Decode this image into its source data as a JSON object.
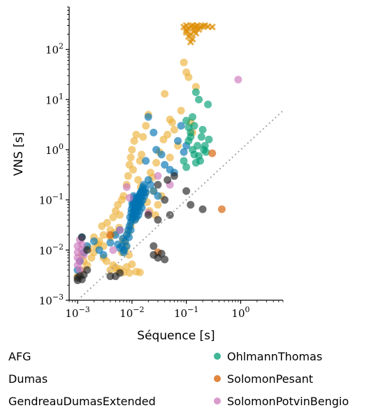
{
  "chart_data": {
    "type": "scatter",
    "xlabel": "Séquence [s]",
    "ylabel": "VNS [s]",
    "xscale": "log",
    "yscale": "log",
    "xlim": [
      0.0007,
      6
    ],
    "ylim": [
      0.001,
      700
    ],
    "x_ticks": [
      {
        "base": "10",
        "exp": "−3"
      },
      {
        "base": "10",
        "exp": "−2"
      },
      {
        "base": "10",
        "exp": "−1"
      },
      {
        "base": "10",
        "exp": "0"
      }
    ],
    "y_ticks": [
      {
        "base": "10",
        "exp": "−3"
      },
      {
        "base": "10",
        "exp": "−2"
      },
      {
        "base": "10",
        "exp": "−1"
      },
      {
        "base": "10",
        "exp": "0"
      },
      {
        "base": "10",
        "exp": "1"
      },
      {
        "base": "10",
        "exp": "2"
      }
    ],
    "diagonal_reference": true,
    "grid": false,
    "legend_placement": "below",
    "series": [
      {
        "name": "AFG",
        "marker": "x",
        "color": "#DE8F05",
        "points": [
          [
            0.09,
            280
          ],
          [
            0.1,
            300
          ],
          [
            0.11,
            260
          ],
          [
            0.12,
            290
          ],
          [
            0.13,
            300
          ],
          [
            0.14,
            270
          ],
          [
            0.15,
            285
          ],
          [
            0.16,
            300
          ],
          [
            0.18,
            280
          ],
          [
            0.2,
            290
          ],
          [
            0.22,
            300
          ],
          [
            0.25,
            285
          ],
          [
            0.3,
            280
          ],
          [
            0.1,
            220
          ],
          [
            0.12,
            200
          ],
          [
            0.14,
            230
          ],
          [
            0.11,
            180
          ],
          [
            0.13,
            160
          ],
          [
            0.12,
            140
          ],
          [
            0.1,
            240
          ],
          [
            0.15,
            210
          ],
          [
            0.17,
            250
          ]
        ]
      },
      {
        "name": "Dumas",
        "color": "#ECB23C",
        "points": [
          [
            0.001,
            0.003
          ],
          [
            0.0012,
            0.004
          ],
          [
            0.0015,
            0.005
          ],
          [
            0.0013,
            0.006
          ],
          [
            0.0018,
            0.007
          ],
          [
            0.002,
            0.009
          ],
          [
            0.0022,
            0.012
          ],
          [
            0.0025,
            0.015
          ],
          [
            0.003,
            0.02
          ],
          [
            0.0028,
            0.03
          ],
          [
            0.0035,
            0.035
          ],
          [
            0.004,
            0.025
          ],
          [
            0.0045,
            0.045
          ],
          [
            0.005,
            0.06
          ],
          [
            0.0055,
            0.08
          ],
          [
            0.006,
            0.05
          ],
          [
            0.0065,
            0.1
          ],
          [
            0.007,
            0.12
          ],
          [
            0.008,
            0.2
          ],
          [
            0.0085,
            0.3
          ],
          [
            0.009,
            0.5
          ],
          [
            0.0095,
            0.7
          ],
          [
            0.01,
            1.0
          ],
          [
            0.011,
            1.5
          ],
          [
            0.012,
            2.0
          ],
          [
            0.0105,
            0.4
          ],
          [
            0.013,
            0.25
          ],
          [
            0.014,
            0.6
          ],
          [
            0.015,
            0.8
          ],
          [
            0.016,
            1.8
          ],
          [
            0.018,
            3.0
          ],
          [
            0.02,
            5.0
          ],
          [
            0.022,
            0.35
          ],
          [
            0.025,
            0.15
          ],
          [
            0.03,
            0.08
          ],
          [
            0.035,
            0.12
          ],
          [
            0.04,
            13
          ],
          [
            0.05,
            4
          ],
          [
            0.06,
            2.5
          ],
          [
            0.07,
            1.2
          ],
          [
            0.08,
            6
          ],
          [
            0.09,
            55
          ],
          [
            0.1,
            35
          ],
          [
            0.11,
            28
          ],
          [
            0.12,
            3.5
          ],
          [
            0.13,
            2.2
          ],
          [
            0.15,
            18
          ],
          [
            0.05,
            0.7
          ],
          [
            0.055,
            3.5
          ],
          [
            0.045,
            2.0
          ],
          [
            0.038,
            1.6
          ],
          [
            0.032,
            0.9
          ],
          [
            0.028,
            0.55
          ],
          [
            0.024,
            0.28
          ],
          [
            0.0012,
            0.008
          ],
          [
            0.0016,
            0.011
          ],
          [
            0.002,
            0.018
          ],
          [
            0.0024,
            0.013
          ],
          [
            0.003,
            0.007
          ],
          [
            0.0034,
            0.006
          ],
          [
            0.004,
            0.004
          ],
          [
            0.0045,
            0.005
          ],
          [
            0.005,
            0.0045
          ],
          [
            0.0055,
            0.0038
          ],
          [
            0.006,
            0.0042
          ],
          [
            0.007,
            0.0036
          ],
          [
            0.008,
            0.0046
          ],
          [
            0.009,
            0.0035
          ],
          [
            0.01,
            0.0052
          ],
          [
            0.012,
            0.0037
          ],
          [
            0.014,
            0.0036
          ],
          [
            0.0075,
            0.014
          ],
          [
            0.0085,
            0.022
          ],
          [
            0.0095,
            0.03
          ],
          [
            0.011,
            0.04
          ],
          [
            0.0125,
            0.07
          ],
          [
            0.0135,
            0.09
          ],
          [
            0.0145,
            0.18
          ],
          [
            0.0175,
            0.14
          ],
          [
            0.019,
            0.09
          ],
          [
            0.021,
            0.06
          ],
          [
            0.027,
            0.05
          ],
          [
            0.004,
            0.018
          ],
          [
            0.0048,
            0.022
          ],
          [
            0.0058,
            0.028
          ],
          [
            0.0068,
            0.016
          ],
          [
            0.0078,
            0.011
          ],
          [
            0.0088,
            0.008
          ],
          [
            0.0065,
            0.009
          ],
          [
            0.003,
            0.012
          ]
        ]
      },
      {
        "name": "GendreauDumasExtended",
        "color": "#0173B2",
        "points": [
          [
            0.001,
            0.004
          ],
          [
            0.0011,
            0.006
          ],
          [
            0.0013,
            0.009
          ],
          [
            0.0015,
            0.012
          ],
          [
            0.0012,
            0.018
          ],
          [
            0.002,
            0.015
          ],
          [
            0.0025,
            0.01
          ],
          [
            0.003,
            0.008
          ],
          [
            0.004,
            0.014
          ],
          [
            0.005,
            0.02
          ],
          [
            0.006,
            0.025
          ],
          [
            0.0065,
            0.012
          ],
          [
            0.007,
            0.009
          ],
          [
            0.0075,
            0.015
          ],
          [
            0.008,
            0.02
          ],
          [
            0.0085,
            0.025
          ],
          [
            0.009,
            0.03
          ],
          [
            0.0095,
            0.035
          ],
          [
            0.01,
            0.04
          ],
          [
            0.0102,
            0.045
          ],
          [
            0.0105,
            0.05
          ],
          [
            0.0108,
            0.055
          ],
          [
            0.011,
            0.06
          ],
          [
            0.0112,
            0.065
          ],
          [
            0.0115,
            0.07
          ],
          [
            0.0118,
            0.075
          ],
          [
            0.012,
            0.08
          ],
          [
            0.0123,
            0.085
          ],
          [
            0.0126,
            0.09
          ],
          [
            0.013,
            0.1
          ],
          [
            0.0133,
            0.11
          ],
          [
            0.0136,
            0.12
          ],
          [
            0.014,
            0.13
          ],
          [
            0.0145,
            0.14
          ],
          [
            0.015,
            0.15
          ],
          [
            0.0155,
            0.16
          ],
          [
            0.016,
            0.18
          ],
          [
            0.0165,
            0.2
          ],
          [
            0.0098,
            0.065
          ],
          [
            0.0103,
            0.075
          ],
          [
            0.0106,
            0.09
          ],
          [
            0.0109,
            0.1
          ],
          [
            0.0111,
            0.11
          ],
          [
            0.0114,
            0.04
          ],
          [
            0.0117,
            0.05
          ],
          [
            0.0121,
            0.045
          ],
          [
            0.0124,
            0.06
          ],
          [
            0.0128,
            0.07
          ],
          [
            0.0132,
            0.05
          ],
          [
            0.0138,
            0.06
          ],
          [
            0.0142,
            0.08
          ],
          [
            0.0148,
            0.09
          ],
          [
            0.0152,
            0.07
          ],
          [
            0.0158,
            0.1
          ],
          [
            0.017,
            0.12
          ],
          [
            0.018,
            0.14
          ],
          [
            0.02,
            0.25
          ],
          [
            0.022,
            0.2
          ],
          [
            0.025,
            0.15
          ],
          [
            0.03,
            0.12
          ],
          [
            0.028,
            1.0
          ],
          [
            0.035,
            0.8
          ],
          [
            0.04,
            0.5
          ],
          [
            0.05,
            0.4
          ],
          [
            0.06,
            0.35
          ],
          [
            0.07,
            1.5
          ],
          [
            0.08,
            3.0
          ],
          [
            0.09,
            0.9
          ],
          [
            0.1,
            1.2
          ],
          [
            0.025,
            2.2
          ],
          [
            0.02,
            4.5
          ],
          [
            0.018,
            0.6
          ],
          [
            0.0095,
            0.025
          ],
          [
            0.0088,
            0.018
          ],
          [
            0.008,
            0.012
          ],
          [
            0.0072,
            0.01
          ],
          [
            0.0068,
            0.017
          ],
          [
            0.006,
            0.011
          ],
          [
            0.0055,
            0.013
          ],
          [
            0.0092,
            0.045
          ],
          [
            0.0097,
            0.055
          ],
          [
            0.0101,
            0.085
          ],
          [
            0.0107,
            0.12
          ],
          [
            0.0113,
            0.085
          ],
          [
            0.0119,
            0.095
          ],
          [
            0.0125,
            0.11
          ],
          [
            0.0131,
            0.08
          ],
          [
            0.0137,
            0.095
          ],
          [
            0.0144,
            0.11
          ],
          [
            0.0151,
            0.12
          ],
          [
            0.0162,
            0.14
          ],
          [
            0.0175,
            0.16
          ]
        ]
      },
      {
        "name": "OhlmannThomas",
        "color": "#029E73",
        "points": [
          [
            0.1,
            3.8
          ],
          [
            0.11,
            2.8
          ],
          [
            0.12,
            1.8
          ],
          [
            0.13,
            1.0
          ],
          [
            0.14,
            0.8
          ],
          [
            0.15,
            14
          ],
          [
            0.17,
            10
          ],
          [
            0.2,
            2.5
          ],
          [
            0.22,
            1.2
          ],
          [
            0.25,
            8
          ],
          [
            0.18,
            0.6
          ],
          [
            0.16,
            1.2
          ],
          [
            0.14,
            3.0
          ],
          [
            0.12,
            2.2
          ],
          [
            0.11,
            1.5
          ],
          [
            0.13,
            4.5
          ],
          [
            0.19,
            1.8
          ],
          [
            0.21,
            1.0
          ],
          [
            0.17,
            0.75
          ],
          [
            0.15,
            0.55
          ],
          [
            0.23,
            0.9
          ],
          [
            0.26,
            1.6
          ],
          [
            0.1,
            0.45
          ],
          [
            0.09,
            0.6
          ]
        ]
      },
      {
        "name": "SolomonPesant",
        "color": "#D55E00",
        "points": [
          [
            0.3,
            0.85
          ],
          [
            0.45,
            0.065
          ],
          [
            0.004,
            0.02
          ],
          [
            0.03,
            0.009
          ]
        ]
      },
      {
        "name": "SolomonPotvinBengio",
        "color": "#CC78BC",
        "points": [
          [
            0.001,
            0.005
          ],
          [
            0.001,
            0.007
          ],
          [
            0.001,
            0.009
          ],
          [
            0.001,
            0.012
          ],
          [
            0.0011,
            0.006
          ],
          [
            0.0012,
            0.01
          ],
          [
            0.0013,
            0.008
          ],
          [
            0.0012,
            0.013
          ],
          [
            0.0011,
            0.016
          ],
          [
            0.0011,
            0.004
          ],
          [
            0.0045,
            0.01
          ],
          [
            0.006,
            0.025
          ],
          [
            0.008,
            0.18
          ],
          [
            0.009,
            0.11
          ],
          [
            0.02,
            0.055
          ],
          [
            0.03,
            0.3
          ],
          [
            0.05,
            0.2
          ],
          [
            0.9,
            25
          ]
        ]
      },
      {
        "name": "",
        "color": "#222222",
        "points": [
          [
            0.001,
            0.0025
          ],
          [
            0.001,
            0.0028
          ],
          [
            0.0011,
            0.003
          ],
          [
            0.0012,
            0.0026
          ],
          [
            0.0013,
            0.0032
          ],
          [
            0.0015,
            0.004
          ],
          [
            0.004,
            0.003
          ],
          [
            0.005,
            0.003
          ],
          [
            0.006,
            0.0035
          ],
          [
            0.02,
            0.05
          ],
          [
            0.03,
            0.04
          ],
          [
            0.04,
            0.1
          ],
          [
            0.05,
            0.05
          ],
          [
            0.1,
            0.15
          ],
          [
            0.12,
            0.08
          ],
          [
            0.2,
            0.065
          ],
          [
            0.025,
            0.012
          ],
          [
            0.03,
            0.007
          ],
          [
            0.04,
            0.0065
          ],
          [
            0.035,
            0.0085
          ],
          [
            0.025,
            0.008
          ],
          [
            0.0012,
            0.018
          ],
          [
            0.0015,
            0.01
          ],
          [
            0.03,
            0.2
          ],
          [
            0.045,
            0.25
          ],
          [
            0.06,
            0.3
          ]
        ]
      }
    ]
  }
}
